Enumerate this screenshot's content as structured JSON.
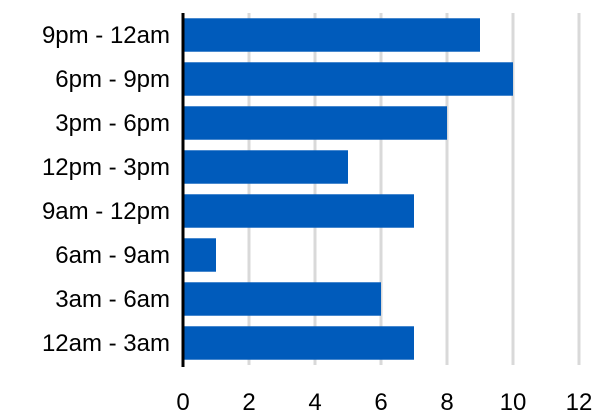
{
  "chart_data": {
    "type": "bar",
    "orientation": "horizontal",
    "categories": [
      "12am - 3am",
      "3am - 6am",
      "6am - 9am",
      "9am - 12pm",
      "12pm - 3pm",
      "3pm - 6pm",
      "6pm - 9pm",
      "9pm - 12am"
    ],
    "values": [
      7,
      6,
      1,
      7,
      5,
      8,
      10,
      9
    ],
    "xlim": [
      0,
      12
    ],
    "xticks": [
      "0",
      "2",
      "4",
      "6",
      "8",
      "10",
      "12"
    ],
    "title": "",
    "xlabel": "",
    "ylabel": "",
    "grid": "vertical",
    "legend": "none",
    "bar_color": "#005BBB",
    "grid_color": "#D9D9D9",
    "axis_color": "#000000"
  }
}
